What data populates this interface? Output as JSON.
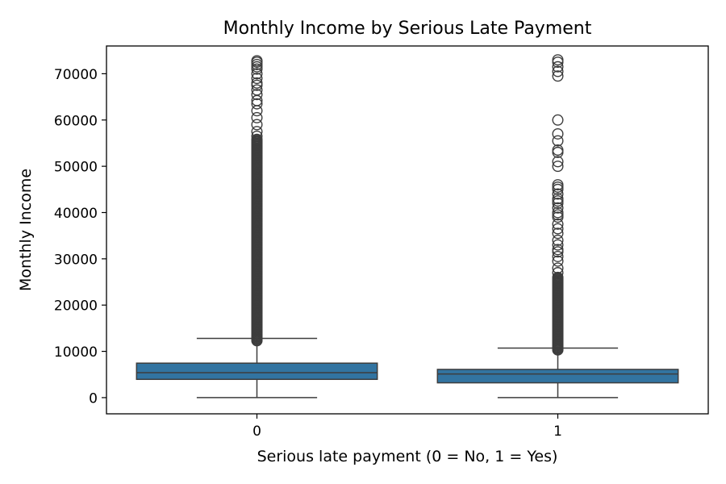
{
  "chart_data": {
    "type": "box",
    "title": "Monthly Income by Serious Late Payment",
    "xlabel": "Serious late payment (0 = No, 1 = Yes)",
    "ylabel": "Monthly Income",
    "ylim": [
      -3500,
      76000
    ],
    "yticks": [
      0,
      10000,
      20000,
      30000,
      40000,
      50000,
      60000,
      70000
    ],
    "categories": [
      "0",
      "1"
    ],
    "grid": false,
    "box_color": "#3274a1",
    "line_color": "#3d3d3d",
    "boxes": [
      {
        "category": "0",
        "whisker_low": 0,
        "q1": 3950,
        "median": 5400,
        "q3": 7450,
        "whisker_high": 12800,
        "outliers_dense_range": [
          12300,
          56000
        ],
        "outliers": [
          56500,
          57500,
          59000,
          60500,
          62000,
          63500,
          64200,
          65500,
          66500,
          67500,
          68000,
          69000,
          70000,
          71000,
          71500,
          72000,
          72500,
          72800
        ]
      },
      {
        "category": "1",
        "whisker_low": 0,
        "q1": 3200,
        "median": 5100,
        "q3": 6100,
        "whisker_high": 10700,
        "outliers_dense_range": [
          10300,
          26000
        ],
        "outliers": [
          27000,
          28000,
          29500,
          30500,
          31500,
          32000,
          33000,
          34000,
          35500,
          36500,
          37500,
          39000,
          39500,
          40000,
          41000,
          42000,
          42500,
          43000,
          44000,
          45000,
          45500,
          46000,
          50000,
          51000,
          53000,
          53500,
          55500,
          57000,
          60000,
          69500,
          70500,
          71500,
          72500,
          73000
        ]
      }
    ]
  }
}
